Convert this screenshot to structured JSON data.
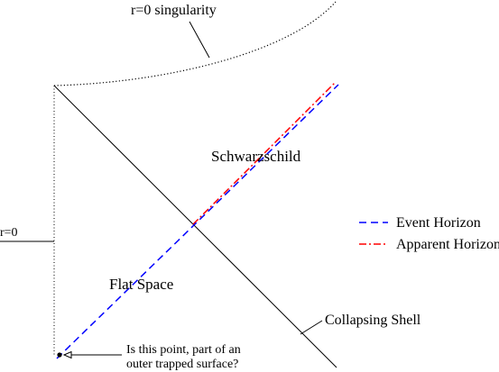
{
  "labels": {
    "singularity": "r=0 singularity",
    "origin": "r=0",
    "schwarzschild": "Schwarzschild",
    "flat_space": "Flat Space",
    "collapsing_shell": "Collapsing Shell",
    "question_line1": "Is this point, part of an",
    "question_line2": "outer trapped surface?"
  },
  "legend": {
    "items": [
      {
        "label": "Event Horizon",
        "color": "#0000ff",
        "style": "dashed"
      },
      {
        "label": "Apparent Horizon",
        "color": "#ff0000",
        "style": "dash-dot"
      }
    ]
  },
  "colors": {
    "event_horizon": "#0000ff",
    "apparent_horizon": "#ff0000",
    "ink": "#000000"
  }
}
